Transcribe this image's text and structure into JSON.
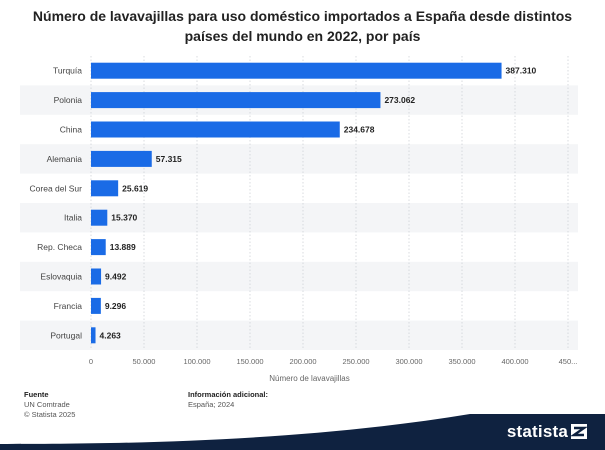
{
  "title": "Número de lavavajillas para uso doméstico importados a España desde distintos países del mundo en 2022, por país",
  "chart_data": {
    "type": "bar",
    "orientation": "horizontal",
    "categories": [
      "Turquía",
      "Polonia",
      "China",
      "Alemania",
      "Corea del Sur",
      "Italia",
      "Rep. Checa",
      "Eslovaquia",
      "Francia",
      "Portugal"
    ],
    "values": [
      387310,
      273062,
      234678,
      57315,
      25619,
      15370,
      13889,
      9492,
      9296,
      4263
    ],
    "value_labels": [
      "387.310",
      "273.062",
      "234.678",
      "57.315",
      "25.619",
      "15.370",
      "13.889",
      "9.492",
      "9.296",
      "4.263"
    ],
    "x_ticks": [
      "0",
      "50.000",
      "100.000",
      "150.000",
      "200.000",
      "250.000",
      "300.000",
      "350.000",
      "400.000",
      "450..."
    ],
    "xlim": [
      0,
      450000
    ],
    "xlabel": "Número de lavavajillas",
    "ylabel": "",
    "grid": true,
    "bar_color": "#1a6be6"
  },
  "footer": {
    "source_heading": "Fuente",
    "source_lines": [
      "UN Comtrade",
      "© Statista 2025"
    ],
    "info_heading": "Información adicional:",
    "info_lines": [
      "España; 2024"
    ]
  },
  "brand": {
    "name": "statista",
    "color": "#0f2240",
    "accent": "#1a6be6"
  }
}
